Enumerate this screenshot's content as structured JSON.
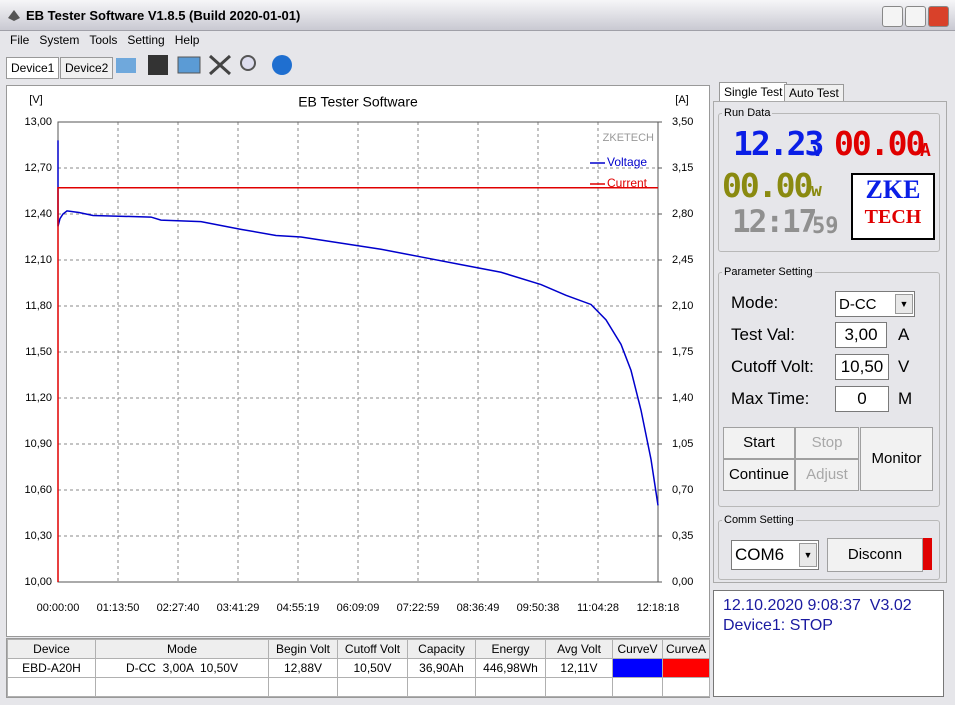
{
  "window": {
    "title": "EB Tester Software V1.8.5 (Build 2020-01-01)"
  },
  "menu": [
    "File",
    "System",
    "Tools",
    "Setting",
    "Help"
  ],
  "tabs": [
    "Device1",
    "Device2"
  ],
  "chart_data": {
    "type": "line",
    "title": "EB Tester Software",
    "watermark": "ZKETECH",
    "y_label": "[V]",
    "y2_label": "[A]",
    "xlim": [
      0,
      44298
    ],
    "xticks": [
      {
        "value": 0,
        "label": "00:00:00"
      },
      {
        "value": 4430,
        "label": "01:13:50"
      },
      {
        "value": 8860,
        "label": "02:27:40"
      },
      {
        "value": 13289,
        "label": "03:41:29"
      },
      {
        "value": 17719,
        "label": "04:55:19"
      },
      {
        "value": 22149,
        "label": "06:09:09"
      },
      {
        "value": 26579,
        "label": "07:22:59"
      },
      {
        "value": 31009,
        "label": "08:36:49"
      },
      {
        "value": 35438,
        "label": "09:50:38"
      },
      {
        "value": 39868,
        "label": "11:04:28"
      },
      {
        "value": 44298,
        "label": "12:18:18"
      }
    ],
    "ylim": [
      10,
      13
    ],
    "yticks": [
      {
        "value": 10,
        "label": "10,00"
      },
      {
        "value": 10.3,
        "label": "10,30"
      },
      {
        "value": 10.6,
        "label": "10,60"
      },
      {
        "value": 10.9,
        "label": "10,90"
      },
      {
        "value": 11.2,
        "label": "11,20"
      },
      {
        "value": 11.5,
        "label": "11,50"
      },
      {
        "value": 11.8,
        "label": "11,80"
      },
      {
        "value": 12.1,
        "label": "12,10"
      },
      {
        "value": 12.4,
        "label": "12,40"
      },
      {
        "value": 12.7,
        "label": "12,70"
      },
      {
        "value": 13,
        "label": "13,00"
      }
    ],
    "y2lim": [
      0,
      3.5
    ],
    "y2ticks": [
      {
        "value": 0,
        "label": "0,00"
      },
      {
        "value": 0.35,
        "label": "0,35"
      },
      {
        "value": 0.7,
        "label": "0,70"
      },
      {
        "value": 1.05,
        "label": "1,05"
      },
      {
        "value": 1.4,
        "label": "1,40"
      },
      {
        "value": 1.75,
        "label": "1,75"
      },
      {
        "value": 2.1,
        "label": "2,10"
      },
      {
        "value": 2.45,
        "label": "2,45"
      },
      {
        "value": 2.8,
        "label": "2,80"
      },
      {
        "value": 3.15,
        "label": "3,15"
      },
      {
        "value": 3.5,
        "label": "3,50"
      }
    ],
    "grid": true,
    "series": [
      {
        "name": "Voltage",
        "color": "#0000cc",
        "x": [
          0,
          0,
          148,
          369,
          664,
          1550,
          2584,
          6866,
          7604,
          10558,
          13511,
          16095,
          17941,
          20894,
          23847,
          26801,
          29754,
          32707,
          35660,
          37506,
          39352,
          40459,
          41567,
          42305,
          43044,
          43782,
          44298
        ],
        "values": [
          12.88,
          12.32,
          12.37,
          12.4,
          12.42,
          12.41,
          12.39,
          12.38,
          12.36,
          12.35,
          12.3,
          12.26,
          12.25,
          12.21,
          12.17,
          12.12,
          12.07,
          12.02,
          11.94,
          11.87,
          11.81,
          11.71,
          11.55,
          11.38,
          11.12,
          10.8,
          10.5
        ]
      },
      {
        "name": "Current",
        "color": "#e00000",
        "axis": "y2",
        "x": [
          0,
          0,
          44298
        ],
        "values": [
          0,
          3,
          3
        ]
      }
    ]
  },
  "table": {
    "header": [
      "Device",
      "Mode",
      "Begin Volt",
      "Cutoff Volt",
      "Capacity",
      "Energy",
      "Avg Volt",
      "CurveV",
      "CurveA"
    ],
    "rows": [
      [
        "EBD-A20H",
        "D-CC  3,00A  10,50V",
        "12,88V",
        "10,50V",
        "36,90Ah",
        "446,98Wh",
        "12,11V"
      ]
    ]
  },
  "side_tabs": [
    "Single Test",
    "Auto Test"
  ],
  "run_data": {
    "title": "Run Data",
    "voltage": "12.23",
    "voltage_unit": "v",
    "current": "00.00",
    "current_unit": "A",
    "power": "00.00",
    "power_unit": "w",
    "time": "12:17",
    "seconds": "59"
  },
  "logo": [
    "ZKE",
    "TECH"
  ],
  "parameter": {
    "title": "Parameter Setting",
    "rows": [
      {
        "label": "Mode:",
        "value": "D-CC"
      },
      {
        "label": "Test Val:",
        "value": "3,00",
        "unit": "A"
      },
      {
        "label": "Cutoff Volt:",
        "value": "10,50",
        "unit": "V"
      },
      {
        "label": "Max Time:",
        "value": "0",
        "unit": "M"
      }
    ]
  },
  "buttons": [
    "Start",
    "Stop",
    "Continue",
    "Adjust",
    "Monitor"
  ],
  "comm": {
    "title": "Comm Setting",
    "port": "COM6",
    "button": "Disconn"
  },
  "status": [
    "12.10.2020 9:08:37  V3.02",
    "Device1: STOP"
  ]
}
